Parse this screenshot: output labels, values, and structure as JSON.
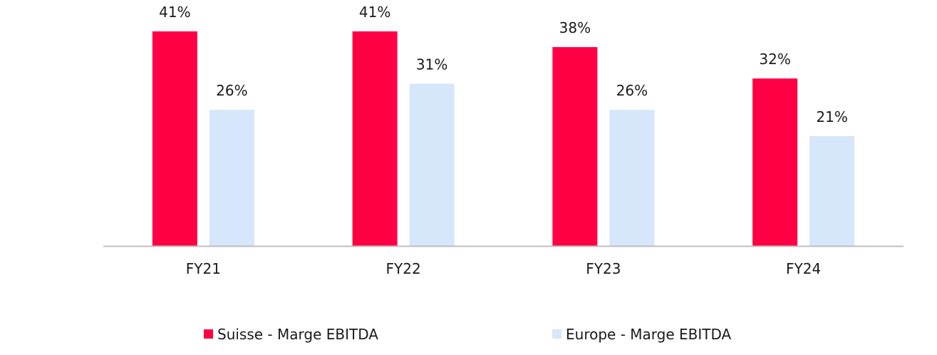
{
  "chart_data": {
    "type": "bar",
    "categories": [
      "FY21",
      "FY22",
      "FY23",
      "FY24"
    ],
    "series": [
      {
        "name": "Suisse - Marge EBITDA",
        "color": "#ff0045",
        "values": [
          41,
          41,
          38,
          32
        ],
        "labels": [
          "41%",
          "41%",
          "38%",
          "32%"
        ]
      },
      {
        "name": "Europe - Marge EBITDA",
        "color": "#d6e6fb",
        "values": [
          26,
          31,
          26,
          21
        ],
        "labels": [
          "26%",
          "31%",
          "26%",
          "21%"
        ]
      }
    ],
    "ylim": [
      0,
      47
    ],
    "legend_position": "bottom",
    "grid": false,
    "axis_color": "#bfbfbf"
  }
}
